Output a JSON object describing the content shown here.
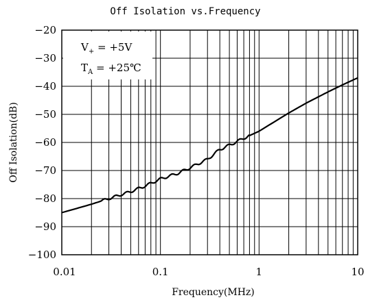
{
  "chart_data": {
    "type": "line",
    "title": "Off Isolation vs.Frequency",
    "xlabel": "Frequency(MHz)",
    "ylabel": "Off Isolation(dB)",
    "x_scale": "log",
    "xlim": [
      0.01,
      10
    ],
    "ylim": [
      -100,
      -20
    ],
    "x_tick_labels": [
      "0.01",
      "0.1",
      "1",
      "10"
    ],
    "x_tick_values": [
      0.01,
      0.1,
      1,
      10
    ],
    "y_ticks": [
      -100,
      -90,
      -80,
      -70,
      -60,
      -50,
      -40,
      -30,
      -20
    ],
    "grid": true,
    "annotations": [
      {
        "main": "V",
        "sub": "+",
        "rest": " = +5V"
      },
      {
        "main": "T",
        "sub": "A",
        "rest": " = +25℃"
      }
    ],
    "series": [
      {
        "x": [
          0.01,
          0.02,
          0.03,
          0.05,
          0.07,
          0.1,
          0.15,
          0.2,
          0.3,
          0.4,
          0.5,
          0.7,
          1,
          2,
          3,
          5,
          7,
          10
        ],
        "y": [
          -85,
          -82,
          -80,
          -77.5,
          -75.5,
          -73,
          -71,
          -69,
          -66,
          -62.5,
          -61,
          -58.5,
          -56,
          -49.5,
          -46,
          -42,
          -39.5,
          -37
        ]
      }
    ]
  }
}
